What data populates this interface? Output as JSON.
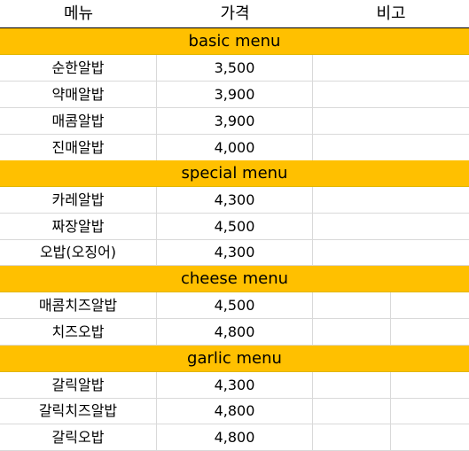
{
  "header": {
    "col_menu": "메뉴",
    "col_price": "가격",
    "col_note": "비고"
  },
  "sections": [
    {
      "title": "basic menu",
      "items": [
        {
          "name": "순한알밥",
          "price": "3,500"
        },
        {
          "name": "약매알밥",
          "price": "3,900"
        },
        {
          "name": "매콤알밥",
          "price": "3,900"
        },
        {
          "name": "진매알밥",
          "price": "4,000"
        }
      ]
    },
    {
      "title": "special menu",
      "items": [
        {
          "name": "카레알밥",
          "price": "4,300"
        },
        {
          "name": "짜장알밥",
          "price": "4,500"
        },
        {
          "name": "오밥(오징어)",
          "price": "4,300"
        }
      ]
    },
    {
      "title": "cheese menu",
      "items": [
        {
          "name": "매콤치즈알밥",
          "price": "4,500"
        },
        {
          "name": "치즈오밥",
          "price": "4,800"
        }
      ]
    },
    {
      "title": "garlic menu",
      "items": [
        {
          "name": "갈릭알밥",
          "price": "4,300"
        },
        {
          "name": "갈릭치즈알밥",
          "price": "4,800"
        },
        {
          "name": "갈릭오밥",
          "price": "4,800"
        }
      ]
    }
  ],
  "colors": {
    "section_bg": "#ffc000",
    "grid": "#d9d9d9"
  }
}
